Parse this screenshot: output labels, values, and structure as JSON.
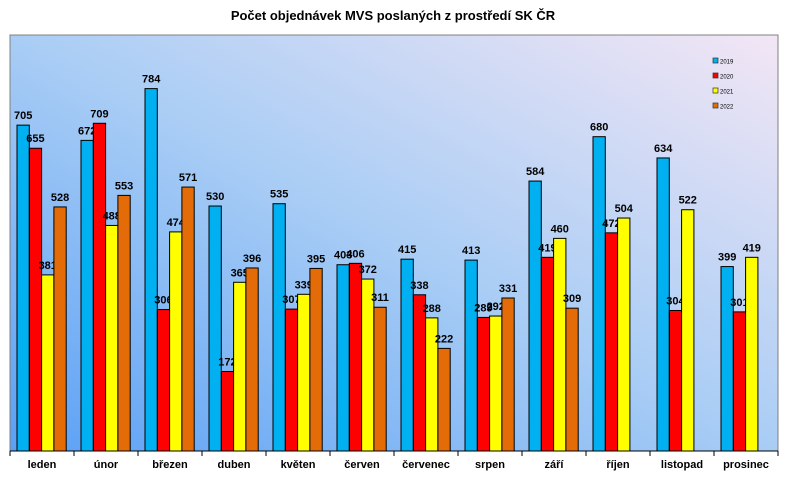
{
  "chart_data": {
    "type": "bar",
    "title": "Počet objednávek MVS poslaných z prostředí SK ČR",
    "xlabel": "",
    "ylabel": "",
    "ylim": [
      0,
      900
    ],
    "grid": false,
    "legend_position": "top-right",
    "categories": [
      "leden",
      "únor",
      "březen",
      "duben",
      "květen",
      "červen",
      "červenec",
      "srpen",
      "září",
      "říjen",
      "listopad",
      "prosinec"
    ],
    "series": [
      {
        "name": "2019",
        "color": "#00B0F0",
        "values": [
          705,
          672,
          784,
          530,
          535,
          403,
          415,
          413,
          584,
          680,
          634,
          399
        ]
      },
      {
        "name": "2020",
        "color": "#FF0000",
        "values": [
          655,
          709,
          306,
          172,
          307,
          406,
          338,
          289,
          419,
          472,
          304,
          301
        ]
      },
      {
        "name": "2021",
        "color": "#FFFF00",
        "values": [
          381,
          488,
          474,
          365,
          339,
          372,
          288,
          292,
          460,
          504,
          522,
          419
        ]
      },
      {
        "name": "2022",
        "color": "#E36C09",
        "values": [
          528,
          553,
          571,
          396,
          395,
          311,
          222,
          331,
          309,
          null,
          null,
          null
        ]
      }
    ]
  }
}
